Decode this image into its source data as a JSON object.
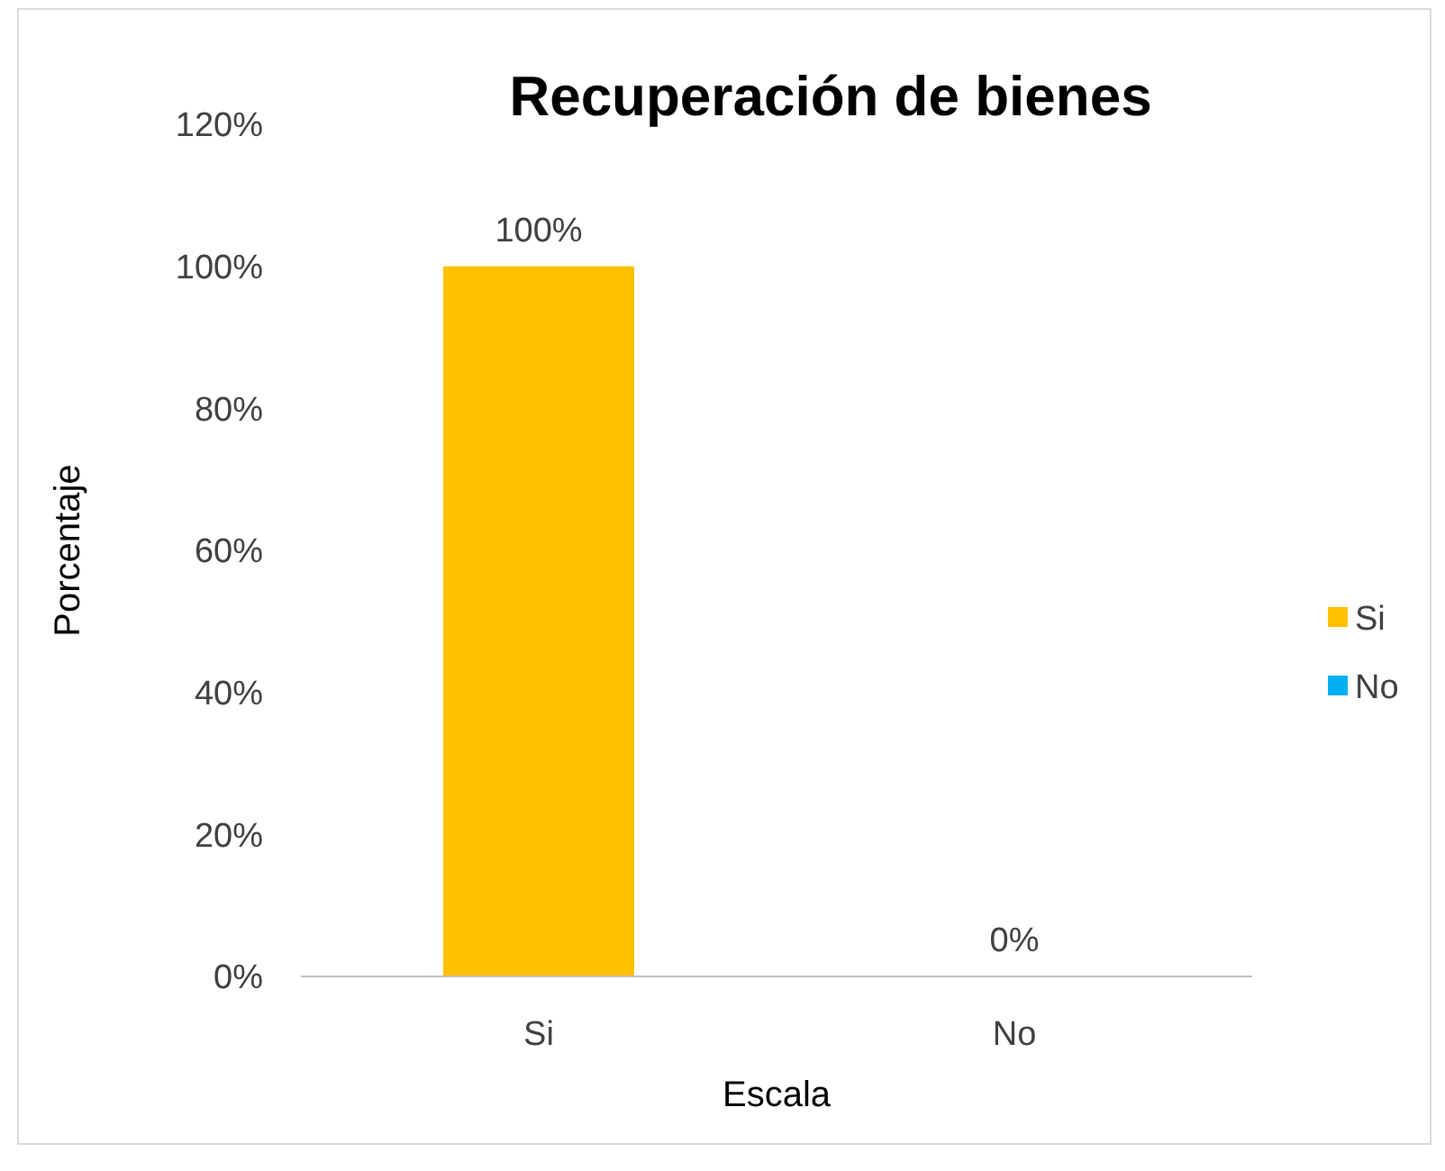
{
  "chart_data": {
    "type": "bar",
    "title": "Recuperación de bienes",
    "xlabel": "Escala",
    "ylabel": "Porcentaje",
    "categories": [
      "Si",
      "No"
    ],
    "series": [
      {
        "name": "Si",
        "color": "#ffc000",
        "values": [
          100,
          null
        ],
        "value_labels": [
          "100%",
          null
        ]
      },
      {
        "name": "No",
        "color": "#00b0f0",
        "values": [
          null,
          0
        ],
        "value_labels": [
          null,
          "0%"
        ]
      }
    ],
    "ylim": [
      0,
      120
    ],
    "yticks": [
      {
        "value": 0,
        "label": "0%"
      },
      {
        "value": 20,
        "label": "20%"
      },
      {
        "value": 40,
        "label": "40%"
      },
      {
        "value": 60,
        "label": "60%"
      },
      {
        "value": 80,
        "label": "80%"
      },
      {
        "value": 100,
        "label": "100%"
      },
      {
        "value": 120,
        "label": "120%"
      }
    ],
    "grid": false,
    "legend": "right"
  }
}
